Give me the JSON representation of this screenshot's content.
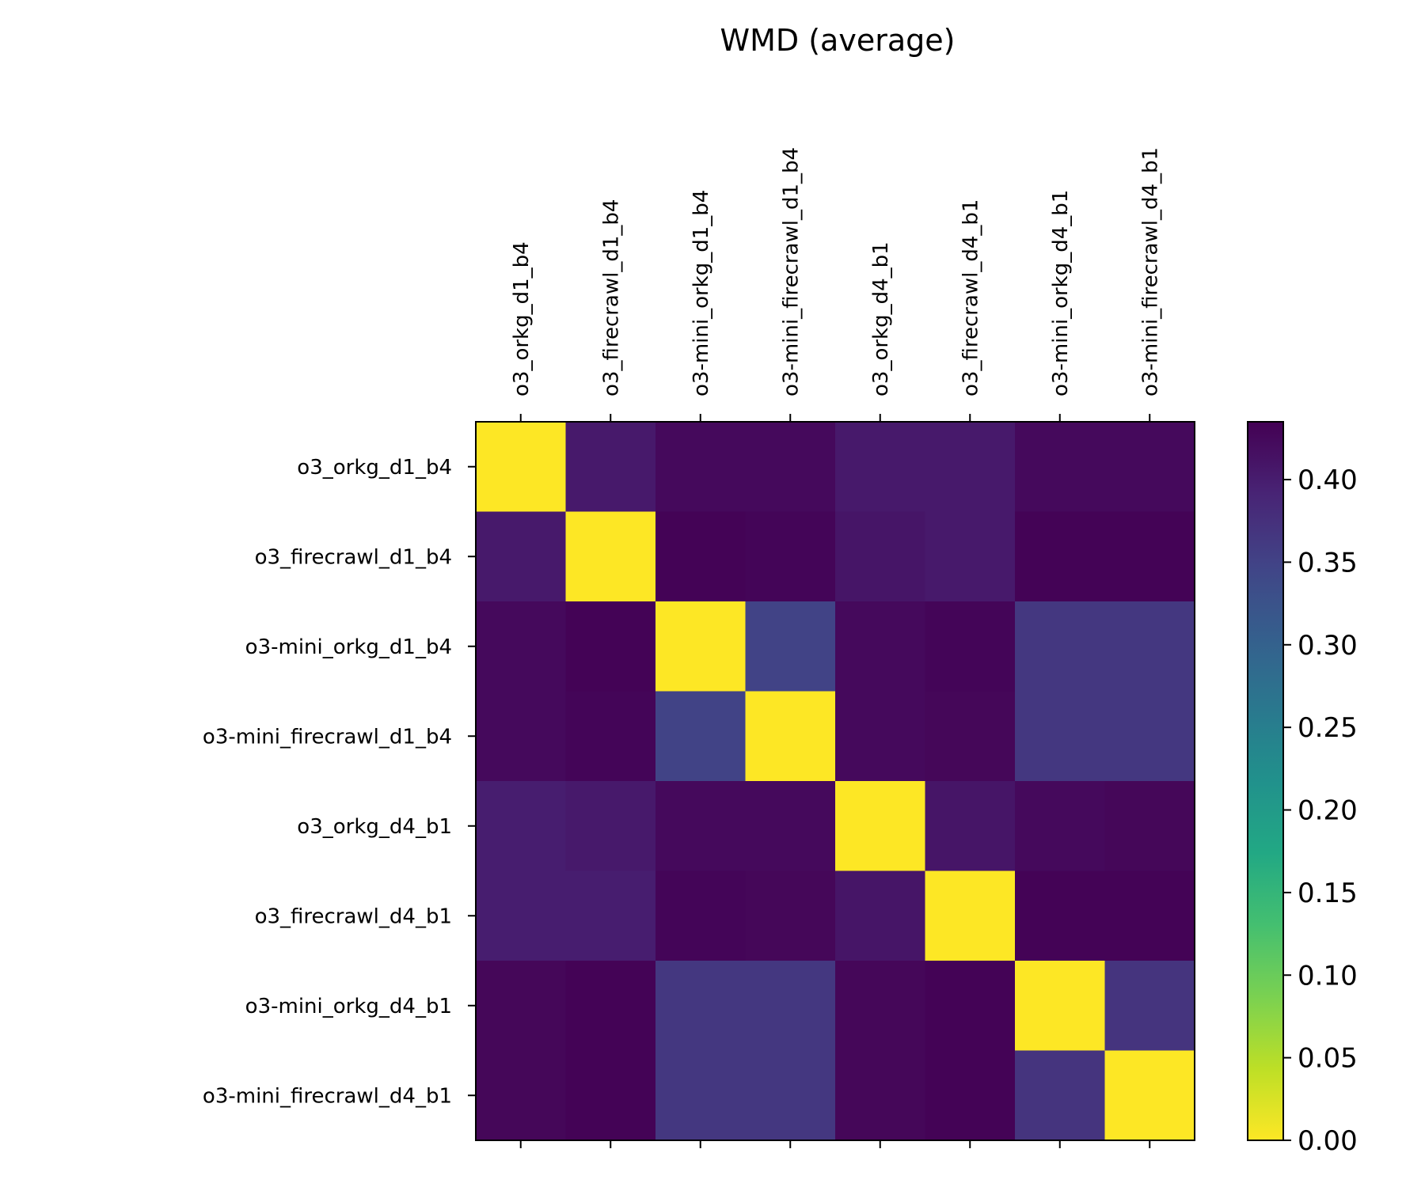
{
  "chart_data": {
    "type": "heatmap",
    "title": "WMD (average)",
    "xlabel": "",
    "ylabel": "",
    "colormap": "viridis",
    "colormap_reversed": true,
    "vmin": 0.0,
    "vmax": 0.435,
    "x_ticks_position": "top",
    "categories": [
      "o3_orkg_d1_b4",
      "o3_firecrawl_d1_b4",
      "o3-mini_orkg_d1_b4",
      "o3-mini_firecrawl_d1_b4",
      "o3_orkg_d4_b1",
      "o3_firecrawl_d4_b1",
      "o3-mini_orkg_d4_b1",
      "o3-mini_firecrawl_d4_b1"
    ],
    "matrix": [
      [
        0.0,
        0.405,
        0.425,
        0.425,
        0.405,
        0.405,
        0.425,
        0.425
      ],
      [
        0.405,
        0.0,
        0.432,
        0.43,
        0.41,
        0.405,
        0.433,
        0.433
      ],
      [
        0.425,
        0.432,
        0.0,
        0.35,
        0.425,
        0.43,
        0.365,
        0.365
      ],
      [
        0.425,
        0.43,
        0.35,
        0.0,
        0.425,
        0.428,
        0.365,
        0.365
      ],
      [
        0.4,
        0.405,
        0.425,
        0.425,
        0.0,
        0.41,
        0.425,
        0.428
      ],
      [
        0.4,
        0.4,
        0.43,
        0.428,
        0.41,
        0.0,
        0.432,
        0.432
      ],
      [
        0.428,
        0.433,
        0.365,
        0.365,
        0.428,
        0.432,
        0.0,
        0.37
      ],
      [
        0.428,
        0.433,
        0.365,
        0.365,
        0.428,
        0.432,
        0.37,
        0.0
      ]
    ],
    "colorbar": {
      "ticks": [
        "0.00",
        "0.05",
        "0.10",
        "0.15",
        "0.20",
        "0.25",
        "0.30",
        "0.35",
        "0.40"
      ],
      "tick_values": [
        0.0,
        0.05,
        0.1,
        0.15,
        0.2,
        0.25,
        0.3,
        0.35,
        0.4
      ],
      "range": [
        0.0,
        0.435
      ]
    }
  }
}
